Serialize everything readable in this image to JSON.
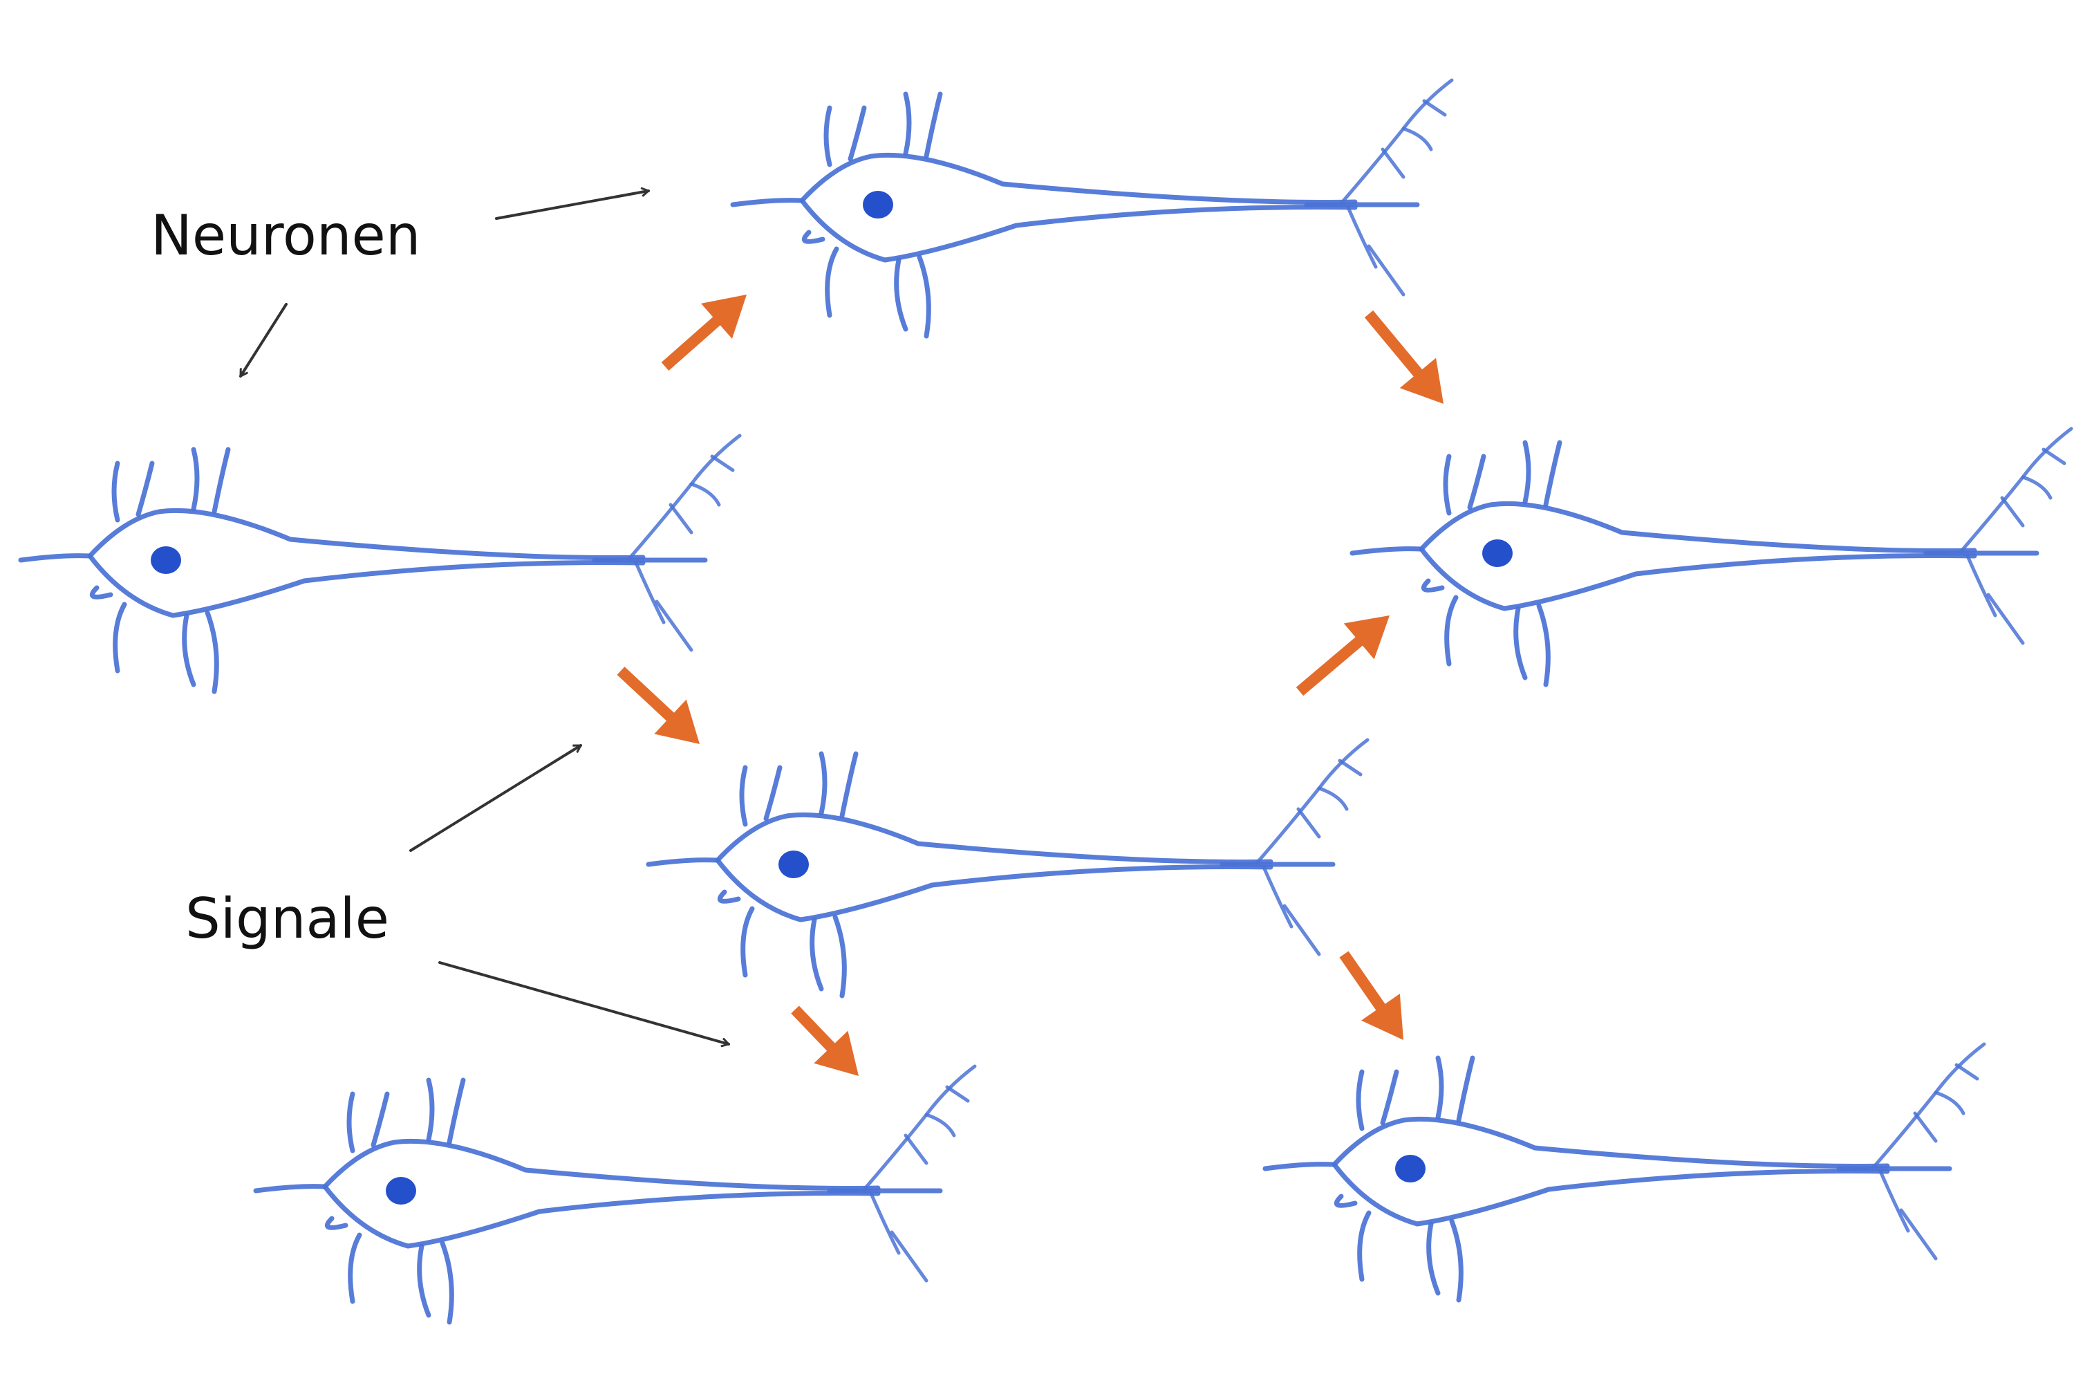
{
  "labels": {
    "neurons": "Neuronen",
    "signals": "Signale"
  },
  "colors": {
    "neuron": "#4a72d6",
    "nucleus": "#2450cc",
    "signal_arrow": "#e36c2b",
    "pointer": "#333333",
    "text": "#111111",
    "background": "#ffffff"
  },
  "icons": {
    "neuron": "neuron-icon",
    "signal": "signal-arrow-icon",
    "pointer": "pointer-arrow-icon"
  }
}
